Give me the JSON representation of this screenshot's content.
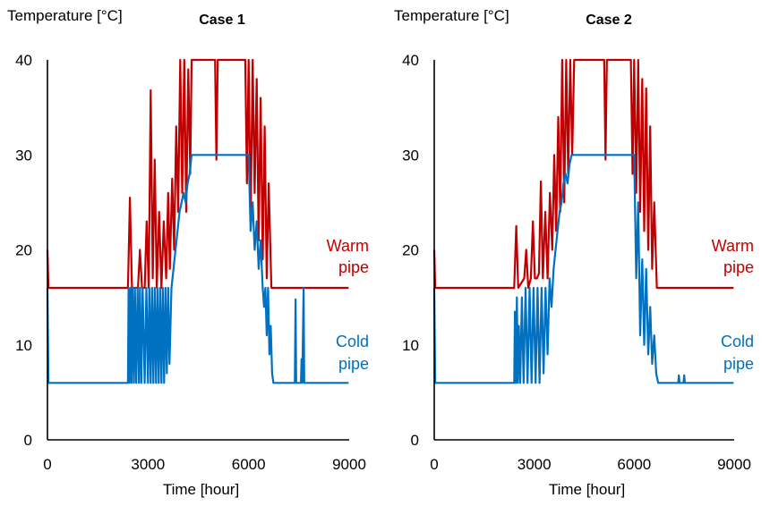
{
  "chart_data": [
    {
      "type": "line",
      "title": "Case 1",
      "ylabel": "Temperature [°C]",
      "xlabel": "Time [hour]",
      "xlim": [
        0,
        9000
      ],
      "ylim": [
        0,
        40
      ],
      "xticks": [
        "0",
        "3000",
        "6000",
        "9000"
      ],
      "yticks": [
        "0",
        "10",
        "20",
        "30",
        "40"
      ],
      "grid": false,
      "series": [
        {
          "name": "Warm pipe",
          "color": "#c00000",
          "points": [
            [
              0,
              20
            ],
            [
              30,
              16
            ],
            [
              2400,
              16
            ],
            [
              2460,
              25.5
            ],
            [
              2520,
              16
            ],
            [
              2700,
              16
            ],
            [
              2760,
              20
            ],
            [
              2820,
              16
            ],
            [
              2900,
              16
            ],
            [
              2960,
              23
            ],
            [
              3020,
              16
            ],
            [
              3080,
              36.8
            ],
            [
              3140,
              17
            ],
            [
              3200,
              29.5
            ],
            [
              3260,
              16
            ],
            [
              3330,
              24
            ],
            [
              3400,
              16
            ],
            [
              3470,
              23
            ],
            [
              3540,
              17
            ],
            [
              3600,
              26
            ],
            [
              3650,
              18
            ],
            [
              3720,
              27.5
            ],
            [
              3780,
              20
            ],
            [
              3840,
              33
            ],
            [
              3900,
              24
            ],
            [
              3960,
              40
            ],
            [
              4020,
              26
            ],
            [
              4080,
              40
            ],
            [
              4140,
              24
            ],
            [
              4200,
              39
            ],
            [
              4260,
              28
            ],
            [
              4300,
              40
            ],
            [
              5000,
              40
            ],
            [
              5040,
              29.5
            ],
            [
              5080,
              40
            ],
            [
              5900,
              40
            ],
            [
              5950,
              27
            ],
            [
              6000,
              40
            ],
            [
              6060,
              23
            ],
            [
              6120,
              40
            ],
            [
              6180,
              26
            ],
            [
              6240,
              38
            ],
            [
              6300,
              21
            ],
            [
              6360,
              36
            ],
            [
              6420,
              19
            ],
            [
              6480,
              33
            ],
            [
              6540,
              17
            ],
            [
              6600,
              27
            ],
            [
              6680,
              16
            ],
            [
              8980,
              16
            ]
          ]
        },
        {
          "name": "Cold pipe",
          "color": "#0070c0",
          "points": [
            [
              0,
              16
            ],
            [
              30,
              6
            ],
            [
              2400,
              6
            ],
            [
              2420,
              16
            ],
            [
              2450,
              6
            ],
            [
              2480,
              16
            ],
            [
              2510,
              6
            ],
            [
              2540,
              16
            ],
            [
              2580,
              6
            ],
            [
              2610,
              16
            ],
            [
              2650,
              6
            ],
            [
              2690,
              16
            ],
            [
              2730,
              6
            ],
            [
              2760,
              16
            ],
            [
              2800,
              6
            ],
            [
              2840,
              16
            ],
            [
              2900,
              6
            ],
            [
              2950,
              16
            ],
            [
              3000,
              6
            ],
            [
              3040,
              16
            ],
            [
              3080,
              6
            ],
            [
              3120,
              16
            ],
            [
              3160,
              6
            ],
            [
              3200,
              16
            ],
            [
              3240,
              6
            ],
            [
              3280,
              16
            ],
            [
              3320,
              6
            ],
            [
              3360,
              16
            ],
            [
              3400,
              6
            ],
            [
              3440,
              16
            ],
            [
              3480,
              6
            ],
            [
              3520,
              16
            ],
            [
              3560,
              7
            ],
            [
              3600,
              16
            ],
            [
              3640,
              8
            ],
            [
              3700,
              16
            ],
            [
              3760,
              18
            ],
            [
              3820,
              20
            ],
            [
              3880,
              22
            ],
            [
              3940,
              24
            ],
            [
              4000,
              25
            ],
            [
              4060,
              26
            ],
            [
              4120,
              25
            ],
            [
              4180,
              27
            ],
            [
              4240,
              28
            ],
            [
              4300,
              30
            ],
            [
              6000,
              30
            ],
            [
              6060,
              22
            ],
            [
              6120,
              25
            ],
            [
              6180,
              20
            ],
            [
              6240,
              23
            ],
            [
              6300,
              18
            ],
            [
              6360,
              21
            ],
            [
              6420,
              16
            ],
            [
              6460,
              14
            ],
            [
              6500,
              16
            ],
            [
              6540,
              11
            ],
            [
              6580,
              16
            ],
            [
              6620,
              9
            ],
            [
              6660,
              12
            ],
            [
              6700,
              7
            ],
            [
              6740,
              6
            ],
            [
              7380,
              6
            ],
            [
              7400,
              14.8
            ],
            [
              7420,
              6
            ],
            [
              7560,
              6
            ],
            [
              7580,
              8.5
            ],
            [
              7600,
              6
            ],
            [
              7640,
              16
            ],
            [
              7660,
              6
            ],
            [
              8980,
              6
            ]
          ]
        }
      ]
    },
    {
      "type": "line",
      "title": "Case 2",
      "ylabel": "Temperature [°C]",
      "xlabel": "Time [hour]",
      "xlim": [
        0,
        9000
      ],
      "ylim": [
        0,
        40
      ],
      "xticks": [
        "0",
        "3000",
        "6000",
        "9000"
      ],
      "yticks": [
        "0",
        "10",
        "20",
        "30",
        "40"
      ],
      "grid": false,
      "series": [
        {
          "name": "Warm pipe",
          "color": "#c00000",
          "points": [
            [
              0,
              20
            ],
            [
              30,
              16
            ],
            [
              2400,
              16
            ],
            [
              2460,
              22.5
            ],
            [
              2520,
              16
            ],
            [
              2700,
              17
            ],
            [
              2760,
              20
            ],
            [
              2820,
              16
            ],
            [
              2900,
              17
            ],
            [
              2960,
              23
            ],
            [
              3020,
              17
            ],
            [
              3080,
              17
            ],
            [
              3140,
              17.5
            ],
            [
              3200,
              27.2
            ],
            [
              3260,
              17
            ],
            [
              3330,
              24
            ],
            [
              3400,
              17
            ],
            [
              3470,
              26
            ],
            [
              3540,
              20
            ],
            [
              3600,
              30
            ],
            [
              3660,
              22
            ],
            [
              3720,
              34
            ],
            [
              3780,
              24
            ],
            [
              3840,
              40
            ],
            [
              3900,
              25
            ],
            [
              3960,
              40
            ],
            [
              4020,
              28
            ],
            [
              4080,
              40
            ],
            [
              4140,
              30
            ],
            [
              4200,
              40
            ],
            [
              5100,
              40
            ],
            [
              5140,
              29.5
            ],
            [
              5180,
              40
            ],
            [
              5900,
              40
            ],
            [
              5950,
              28
            ],
            [
              6000,
              40
            ],
            [
              6060,
              26
            ],
            [
              6120,
              40
            ],
            [
              6180,
              24
            ],
            [
              6240,
              38
            ],
            [
              6300,
              22
            ],
            [
              6360,
              37
            ],
            [
              6420,
              20
            ],
            [
              6480,
              33
            ],
            [
              6540,
              18
            ],
            [
              6600,
              25
            ],
            [
              6680,
              16
            ],
            [
              8980,
              16
            ]
          ]
        },
        {
          "name": "Cold pipe",
          "color": "#0070c0",
          "points": [
            [
              0,
              16
            ],
            [
              30,
              6
            ],
            [
              2400,
              6
            ],
            [
              2420,
              13.5
            ],
            [
              2450,
              6
            ],
            [
              2480,
              15
            ],
            [
              2510,
              6
            ],
            [
              2540,
              12
            ],
            [
              2580,
              6
            ],
            [
              2630,
              15
            ],
            [
              2680,
              6
            ],
            [
              2740,
              16
            ],
            [
              2800,
              6
            ],
            [
              2860,
              16
            ],
            [
              2920,
              6
            ],
            [
              2980,
              16
            ],
            [
              3040,
              6
            ],
            [
              3100,
              16
            ],
            [
              3160,
              6
            ],
            [
              3220,
              16
            ],
            [
              3280,
              7
            ],
            [
              3340,
              16
            ],
            [
              3400,
              9
            ],
            [
              3460,
              17
            ],
            [
              3520,
              14
            ],
            [
              3580,
              18
            ],
            [
              3640,
              20
            ],
            [
              3700,
              22
            ],
            [
              3760,
              24
            ],
            [
              3820,
              25
            ],
            [
              3880,
              27
            ],
            [
              3940,
              28
            ],
            [
              4000,
              27
            ],
            [
              4060,
              29
            ],
            [
              4120,
              30
            ],
            [
              6000,
              30
            ],
            [
              6060,
              17
            ],
            [
              6120,
              25
            ],
            [
              6180,
              11
            ],
            [
              6240,
              19
            ],
            [
              6300,
              10
            ],
            [
              6360,
              18
            ],
            [
              6420,
              9
            ],
            [
              6480,
              14
            ],
            [
              6540,
              8
            ],
            [
              6600,
              11
            ],
            [
              6660,
              7
            ],
            [
              6720,
              6
            ],
            [
              7320,
              6
            ],
            [
              7340,
              6.8
            ],
            [
              7360,
              6
            ],
            [
              7480,
              6
            ],
            [
              7500,
              6.8
            ],
            [
              7520,
              6
            ],
            [
              8980,
              6
            ]
          ]
        }
      ]
    }
  ]
}
